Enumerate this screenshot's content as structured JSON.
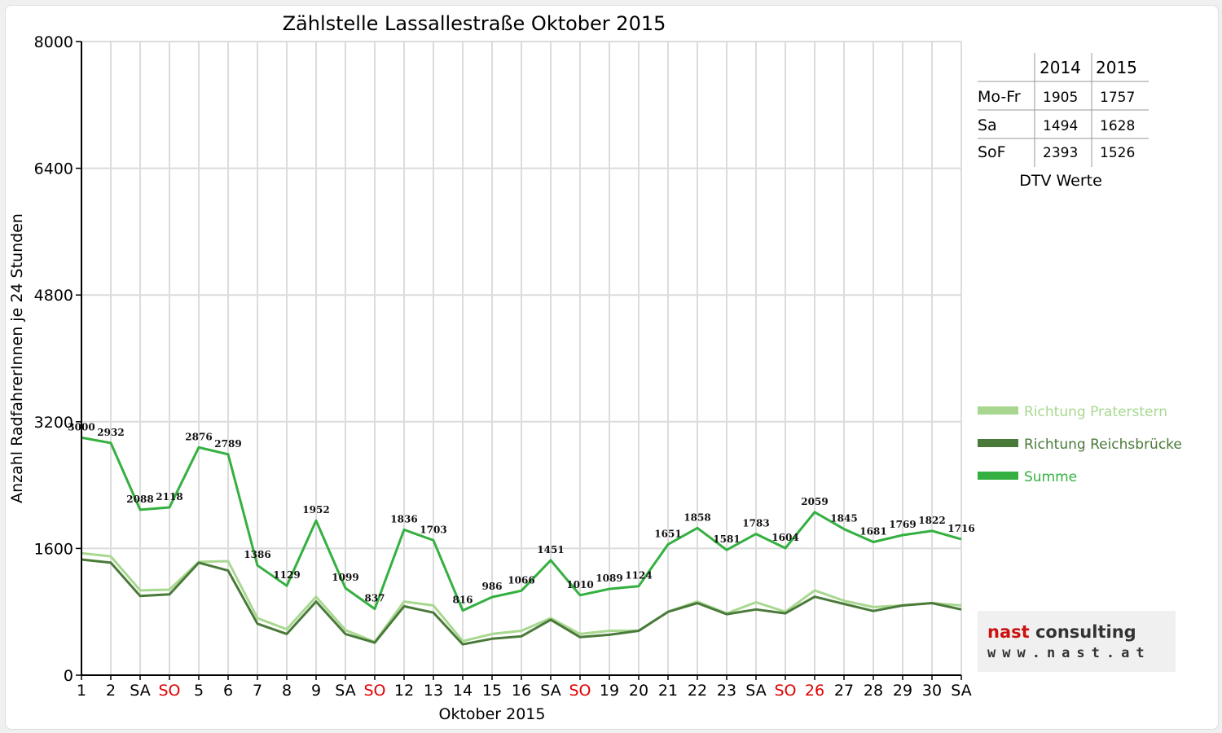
{
  "chart_data": {
    "type": "line",
    "title": "Zählstelle Lassallestraße Oktober 2015",
    "xlabel": "Oktober 2015",
    "ylabel": "Anzahl RadfahrerInnen je 24 Stunden",
    "ylim": [
      0,
      8000
    ],
    "yticks": [
      "0",
      "1600",
      "3200",
      "4800",
      "6400",
      "8000"
    ],
    "grid": true,
    "legend_position": "right",
    "categories": [
      "1",
      "2",
      "SA",
      "SO",
      "5",
      "6",
      "7",
      "8",
      "9",
      "SA",
      "SO",
      "12",
      "13",
      "14",
      "15",
      "16",
      "SA",
      "SO",
      "19",
      "20",
      "21",
      "22",
      "23",
      "SA",
      "SO",
      "26",
      "27",
      "28",
      "29",
      "30",
      "SA"
    ],
    "category_colors": [
      "#000000",
      "#000000",
      "#000000",
      "#e00000",
      "#000000",
      "#000000",
      "#000000",
      "#000000",
      "#000000",
      "#000000",
      "#e00000",
      "#000000",
      "#000000",
      "#000000",
      "#000000",
      "#000000",
      "#000000",
      "#e00000",
      "#000000",
      "#000000",
      "#000000",
      "#000000",
      "#000000",
      "#000000",
      "#e00000",
      "#e00000",
      "#000000",
      "#000000",
      "#000000",
      "#000000",
      "#000000"
    ],
    "series": [
      {
        "name": "Richtung Praterstern",
        "color": "#a8d890",
        "values": [
          1540,
          1500,
          1070,
          1080,
          1430,
          1440,
          720,
          580,
          990,
          570,
          420,
          930,
          880,
          430,
          520,
          560,
          720,
          520,
          560,
          560,
          800,
          930,
          780,
          920,
          800,
          1070,
          940,
          860,
          880,
          910,
          880
        ]
      },
      {
        "name": "Richtung Reichsbrücke",
        "color": "#4a7a3a",
        "values": [
          1460,
          1420,
          1000,
          1020,
          1420,
          1320,
          650,
          520,
          930,
          520,
          410,
          870,
          790,
          390,
          460,
          490,
          700,
          480,
          510,
          560,
          800,
          910,
          770,
          830,
          780,
          990,
          900,
          810,
          880,
          910,
          830
        ]
      },
      {
        "name": "Summe",
        "color": "#34b040",
        "values": [
          3000,
          2932,
          2088,
          2118,
          2876,
          2789,
          1386,
          1129,
          1952,
          1099,
          837,
          1836,
          1703,
          816,
          986,
          1066,
          1451,
          1010,
          1089,
          1124,
          1651,
          1858,
          1581,
          1783,
          1604,
          2059,
          1845,
          1681,
          1769,
          1822,
          1716
        ]
      }
    ],
    "data_labels": [
      "3000",
      "2932",
      "2088",
      "2118",
      "2876",
      "2789",
      "1386",
      "1129",
      "1952",
      "1099",
      "837",
      "1836",
      "1703",
      "816",
      "986",
      "1066",
      "1451",
      "1010",
      "1089",
      "1124",
      "1651",
      "1858",
      "1581",
      "1783",
      "1604",
      "2059",
      "1845",
      "1681",
      "1769",
      "1822",
      "1716"
    ]
  },
  "dtv_table": {
    "headers": [
      "",
      "2014",
      "2015"
    ],
    "rows": [
      {
        "label": "Mo-Fr",
        "v2014": "1905",
        "v2015": "1757"
      },
      {
        "label": "Sa",
        "v2014": "1494",
        "v2015": "1628"
      },
      {
        "label": "SoF",
        "v2014": "2393",
        "v2015": "1526"
      }
    ],
    "caption": "DTV Werte"
  },
  "logo": {
    "brand_part1": "nast",
    "brand_part2": " consulting",
    "url": "www.nast.at"
  },
  "colors": {
    "sunday_holiday": "#e00000",
    "grid": "#d8d8d8",
    "axis": "#000000"
  }
}
